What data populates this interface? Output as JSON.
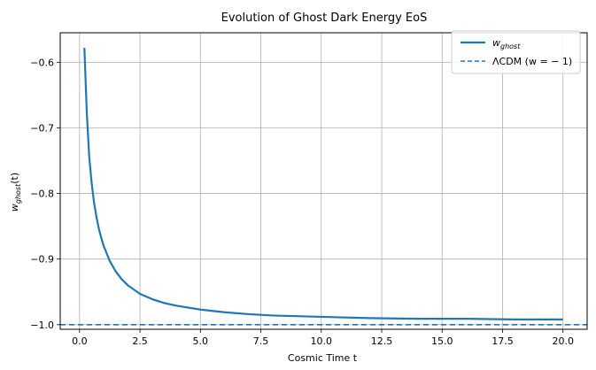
{
  "chart_data": {
    "type": "line",
    "title": "Evolution of Ghost Dark Energy EoS",
    "xlabel": "Cosmic Time t",
    "ylabel_main": "w",
    "ylabel_sub": "ghost",
    "ylabel_suffix": "(t)",
    "xlim": [
      -0.8,
      21.0
    ],
    "ylim": [
      -1.007,
      -0.555
    ],
    "grid": true,
    "legend_placement": "top-right",
    "x_ticks": [
      0.0,
      2.5,
      5.0,
      7.5,
      10.0,
      12.5,
      15.0,
      17.5,
      20.0
    ],
    "x_tick_labels": [
      "0.0",
      "2.5",
      "5.0",
      "7.5",
      "10.0",
      "12.5",
      "15.0",
      "17.5",
      "20.0"
    ],
    "y_ticks": [
      -1.0,
      -0.9,
      -0.8,
      -0.7,
      -0.6
    ],
    "y_tick_labels": [
      "−1.0",
      "−0.9",
      "−0.8",
      "−0.7",
      "−0.6"
    ],
    "series": [
      {
        "name_main": "w",
        "name_sub": "ghost",
        "color": "#1f77b4",
        "style": "solid",
        "x": [
          0.2,
          0.3,
          0.4,
          0.5,
          0.6,
          0.7,
          0.8,
          0.9,
          1.0,
          1.25,
          1.5,
          1.75,
          2.0,
          2.5,
          3.0,
          3.5,
          4.0,
          5.0,
          6.0,
          7.0,
          8.0,
          10.0,
          12.0,
          14.0,
          16.0,
          18.0,
          20.0
        ],
        "y": [
          -0.578,
          -0.677,
          -0.744,
          -0.784,
          -0.814,
          -0.836,
          -0.854,
          -0.868,
          -0.88,
          -0.903,
          -0.919,
          -0.931,
          -0.94,
          -0.953,
          -0.961,
          -0.967,
          -0.971,
          -0.977,
          -0.981,
          -0.984,
          -0.986,
          -0.988,
          -0.99,
          -0.991,
          -0.991,
          -0.992,
          -0.992
        ]
      }
    ],
    "reference_line": {
      "name": "ΛCDM (w = − 1)",
      "y": -1.0,
      "color": "#1f77b4",
      "style": "dashed"
    }
  },
  "legend": {
    "series_main": "w",
    "series_sub": "ghost",
    "reference_label": "ΛCDM (w = − 1)"
  }
}
